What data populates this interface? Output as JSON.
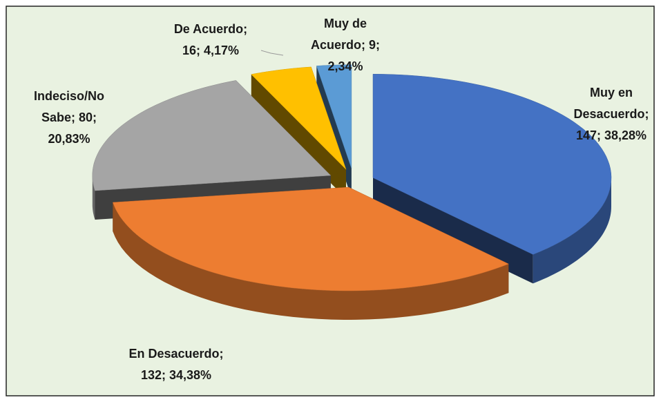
{
  "chart_data": {
    "type": "pie3d",
    "categories": [
      "Muy en Desacuerdo",
      "En Desacuerdo",
      "Indeciso/No Sabe",
      "De Acuerdo",
      "Muy de Acuerdo"
    ],
    "values": [
      147,
      132,
      80,
      16,
      9
    ],
    "value_labels": [
      "147; 38,28%",
      "132; 34,38%",
      "80; 20,83%",
      "16; 4,17%",
      "9; 2,34%"
    ],
    "label_separator": "; ",
    "colors": [
      "#4472c4",
      "#ed7d31",
      "#a5a5a5",
      "#ffc000",
      "#5b9bd5"
    ]
  }
}
